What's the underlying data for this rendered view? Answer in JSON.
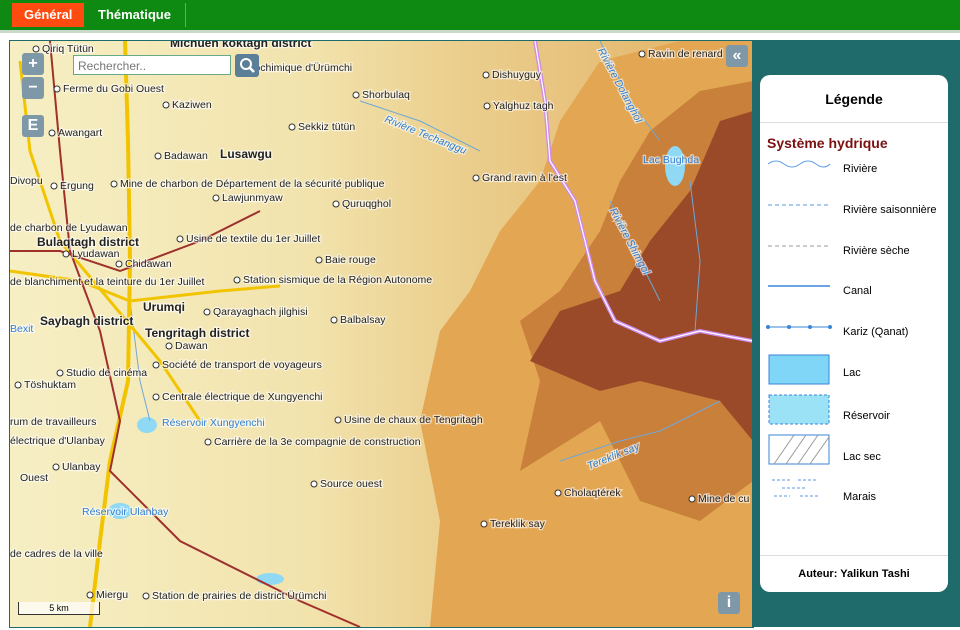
{
  "tabs": [
    "Général",
    "Thématique"
  ],
  "search": {
    "placeholder": "Rechercher.."
  },
  "controls": {
    "zoom_in": "+",
    "zoom_out": "−",
    "layers": "E",
    "collapse": "«",
    "info": "i"
  },
  "scale": "5 km",
  "map": {
    "labels": [
      "Qiriq Tütün",
      "Michuen koktagh district",
      "trochimique d'Ürümchi",
      "Ferme du Gobi Ouest",
      "Kaziwen",
      "Shorbulaq",
      "Dishuyguy",
      "Yalghuz tagh",
      "Ravin de renard",
      "Awangart",
      "Sekkiz tütün",
      "Rivière Techanggu",
      "Rivière Dolanghol",
      "Lac Bughda",
      "Badawan",
      "Lusawgu",
      "Divopu",
      "Ergung",
      "Mine de charbon de Département de la sécurité publique",
      "Grand ravin à l'est",
      "Lawjunmyaw",
      "Quruqghol",
      "de charbon de Lyudawan",
      "Bulaqtagh district",
      "Usine de textile du 1er Juillet",
      "Lyudawan",
      "Chidawan",
      "Baie rouge",
      "Rivière Shimgol",
      "de blanchiment et la teinture du 1er Juillet",
      "Station sismique de la Région Autonome",
      "Urumqi",
      "Qarayaghach jilghisi",
      "Balbalsay",
      "Saybagh district",
      "Bexit",
      "Tengritagh district",
      "Dawan",
      "Société de transport de voyageurs",
      "Studio de cinéma",
      "Töshuktam",
      "Centrale électrique de Xungyenchi",
      "Usine de chaux de Tengritagh",
      "rum de travailleurs",
      "Réservoir Xungyenchi",
      "électrique d'Ulanbay",
      "Carrière de la 3e compagnie de construction",
      "Tereklik say",
      "Ulanbay",
      "Ouest",
      "Source ouest",
      "Cholaqtérek",
      "Mine de cu",
      "Réservoir Ulanbay",
      "Tereklik say",
      "de cadres de la ville",
      "Miergu",
      "Station de prairies de district Ürümchi"
    ]
  },
  "legend": {
    "title": "Légende",
    "section": "Système hydrique",
    "items": [
      "Rivière",
      "Rivière saisonnière",
      "Rivière sèche",
      "Canal",
      "Kariz (Qanat)",
      "Lac",
      "Réservoir",
      "Lac sec",
      "Marais"
    ],
    "author": "Auteur: Yalikun Tashi"
  }
}
